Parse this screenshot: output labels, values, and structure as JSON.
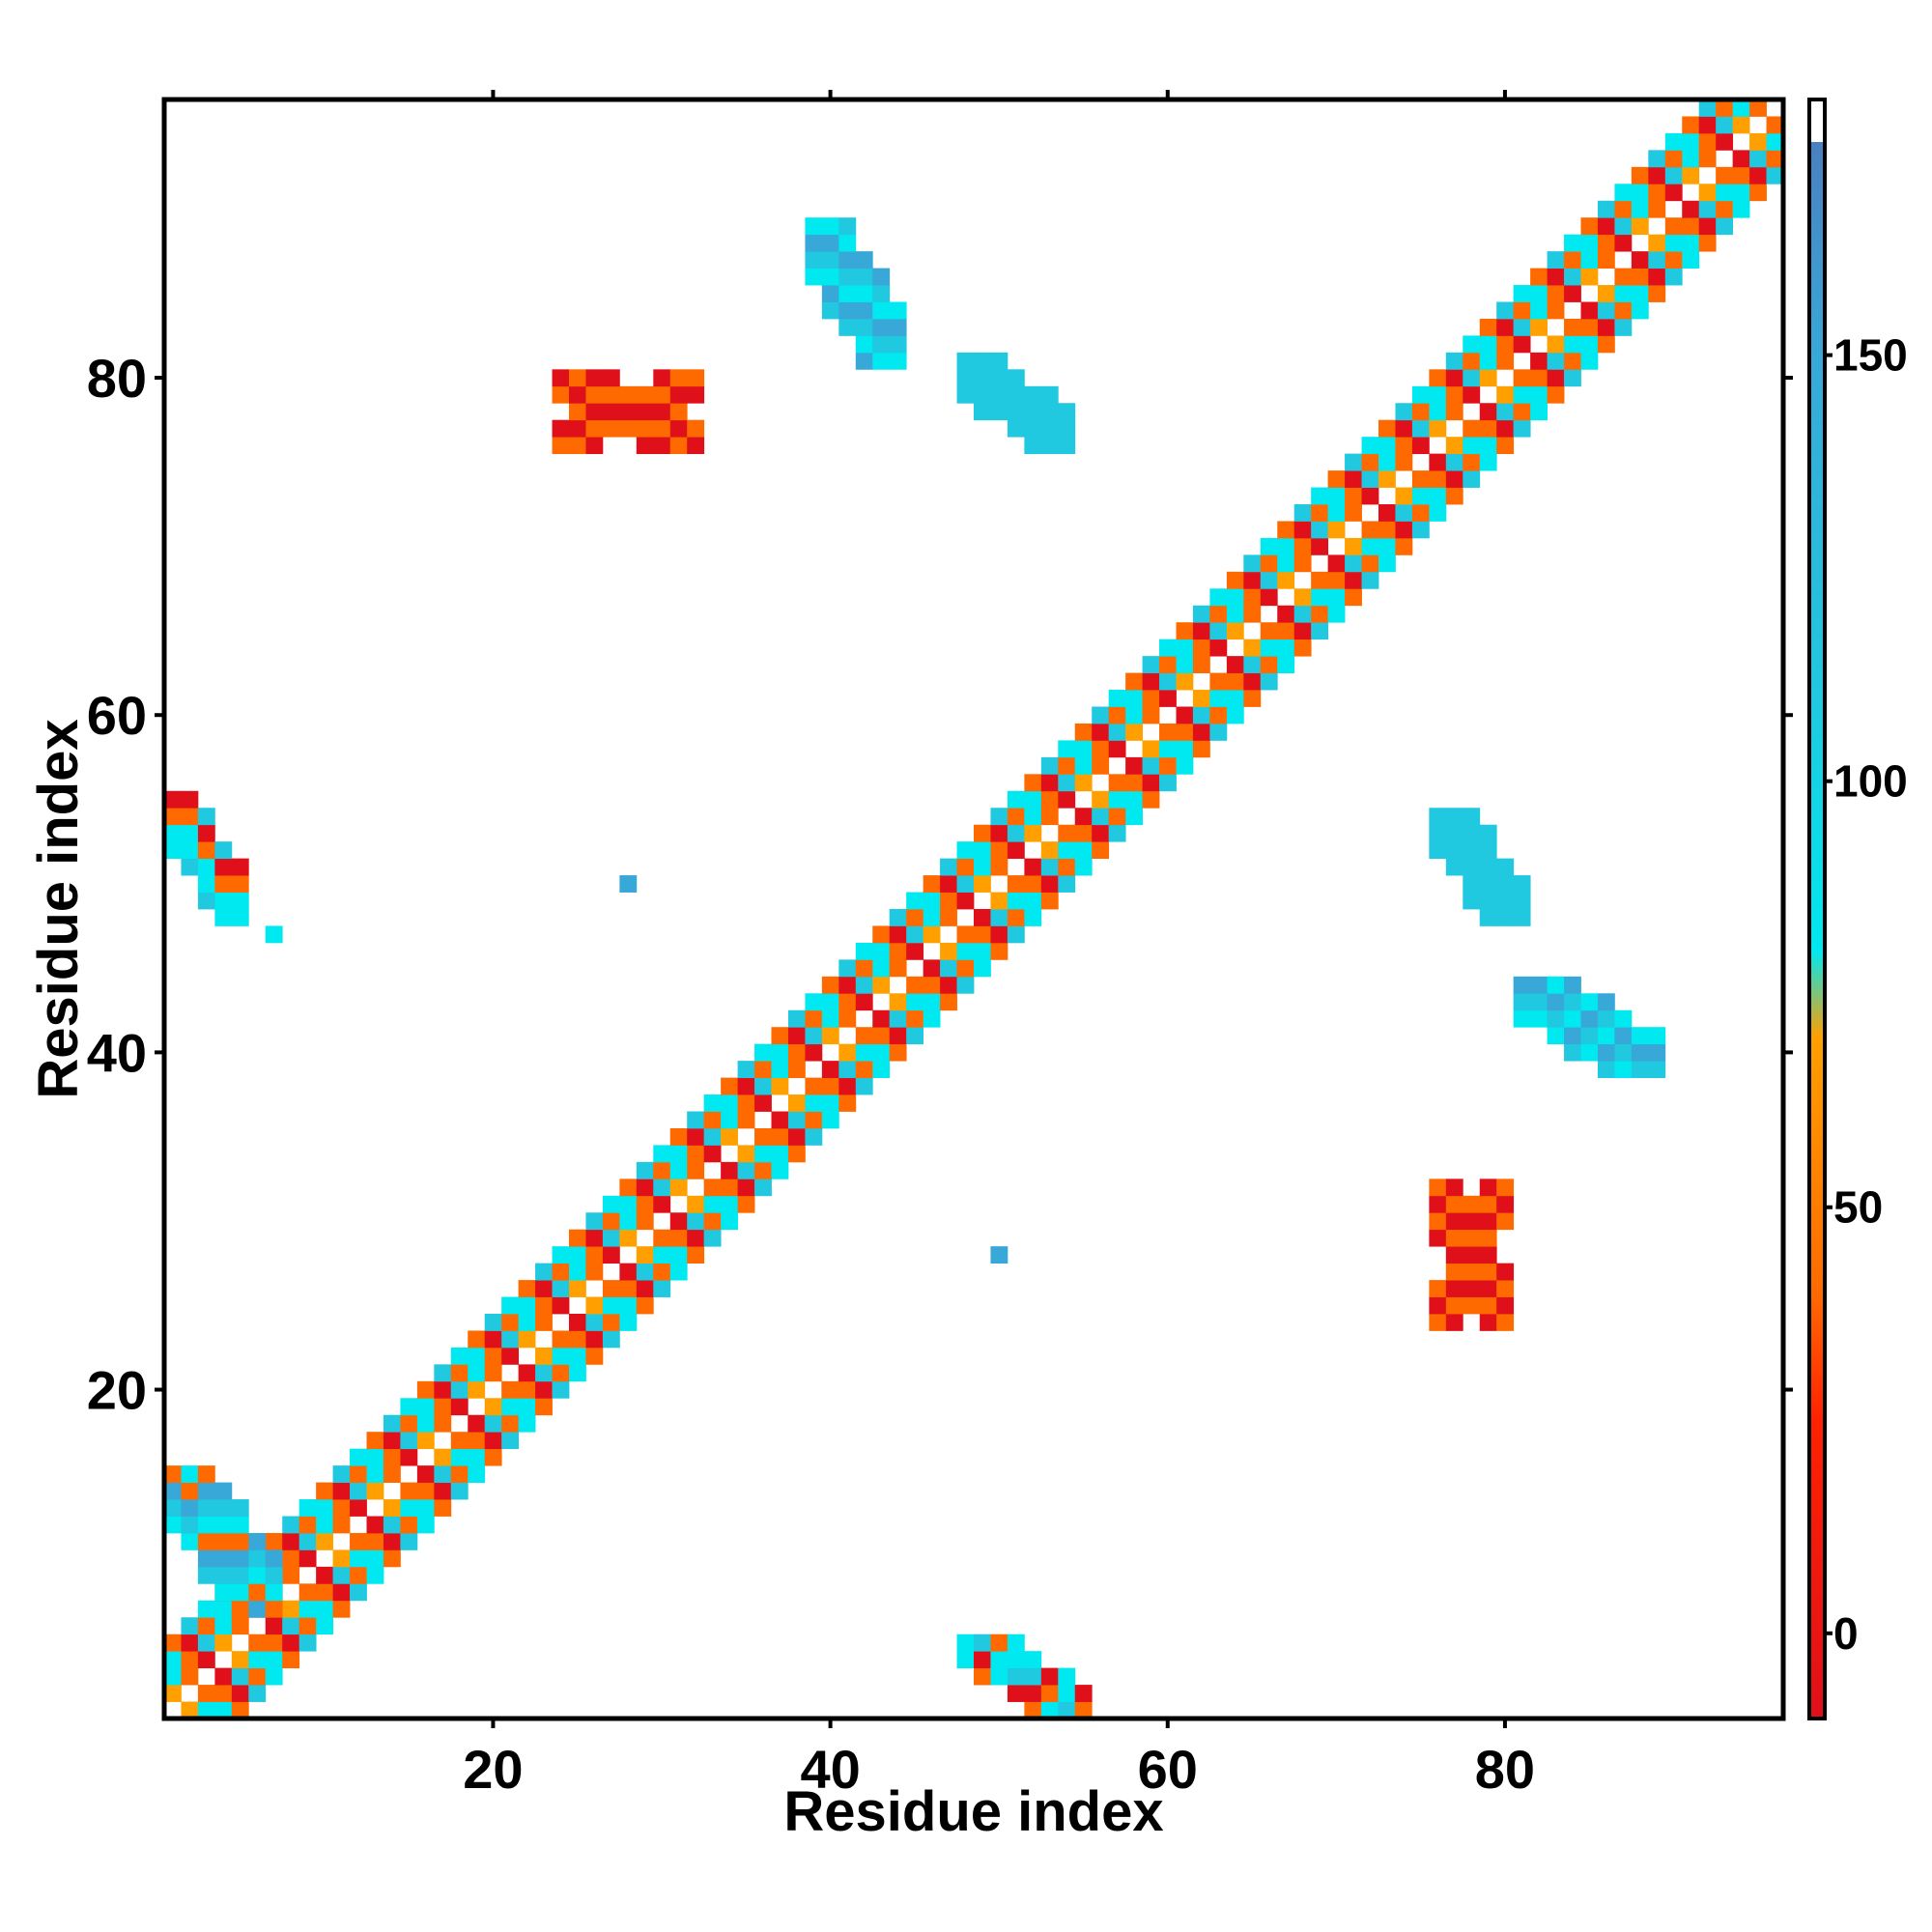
{
  "chart_data": {
    "type": "heatmap",
    "xlabel": "Residue index",
    "ylabel": "Residue index",
    "xlim": [
      0.5,
      96.5
    ],
    "ylim": [
      0.5,
      96.5
    ],
    "xticks": [
      20,
      40,
      60,
      80
    ],
    "yticks": [
      20,
      40,
      60,
      80
    ],
    "colorbar": {
      "range": [
        -10,
        180
      ],
      "ticks": [
        0,
        50,
        100,
        150
      ],
      "stops": [
        {
          "value": -10,
          "color": "#e0101a"
        },
        {
          "value": 25,
          "color": "#ff2200"
        },
        {
          "value": 40,
          "color": "#ff6a00"
        },
        {
          "value": 70,
          "color": "#ffa000"
        },
        {
          "value": 80,
          "color": "#00e8f0"
        },
        {
          "value": 110,
          "color": "#20c8e0"
        },
        {
          "value": 150,
          "color": "#38a8d8"
        },
        {
          "value": 175,
          "color": "#4a80c0"
        },
        {
          "value": 175.01,
          "color": "#ffffff"
        },
        {
          "value": 180,
          "color": "#ffffff"
        }
      ]
    },
    "diagonal_band": {
      "residues": [
        1,
        96
      ],
      "pattern": "alternating orange/red (cis contacts) and cyan (helix) cells along i-j offsets 1-4"
    },
    "patches": [
      {
        "i_range": [
          1,
          5
        ],
        "j_range": [
          48,
          55
        ],
        "value_class": "mixed",
        "values": [
          95,
          100,
          40,
          10,
          130
        ]
      },
      {
        "i_range": [
          48,
          55
        ],
        "j_range": [
          1,
          5
        ],
        "value_class": "mixed",
        "values": [
          95,
          100,
          40,
          10,
          130
        ]
      },
      {
        "i_range": [
          1,
          7
        ],
        "j_range": [
          7,
          15
        ],
        "value_class": "cyan",
        "values": [
          100,
          110,
          150,
          40
        ]
      },
      {
        "i_range": [
          39,
          44
        ],
        "j_range": [
          81,
          89
        ],
        "value_class": "blue",
        "values": [
          90,
          130,
          165
        ]
      },
      {
        "i_range": [
          81,
          89
        ],
        "j_range": [
          39,
          44
        ],
        "value_class": "blue",
        "values": [
          90,
          130,
          165
        ]
      },
      {
        "i_range": [
          48,
          54
        ],
        "j_range": [
          76,
          81
        ],
        "value_class": "cyan",
        "values": [
          110,
          130
        ]
      },
      {
        "i_range": [
          76,
          81
        ],
        "j_range": [
          48,
          54
        ],
        "value_class": "cyan",
        "values": [
          110,
          130
        ]
      },
      {
        "i_range": [
          24,
          32
        ],
        "j_range": [
          76,
          80
        ],
        "value_class": "orange",
        "values": [
          40,
          10
        ]
      },
      {
        "i_range": [
          76,
          80
        ],
        "j_range": [
          24,
          32
        ],
        "value_class": "orange",
        "values": [
          40,
          10
        ]
      },
      {
        "i": 28,
        "j": 50,
        "value": 165
      },
      {
        "i": 50,
        "j": 28,
        "value": 165
      },
      {
        "i": 7,
        "j": 47,
        "value": 100
      }
    ]
  }
}
